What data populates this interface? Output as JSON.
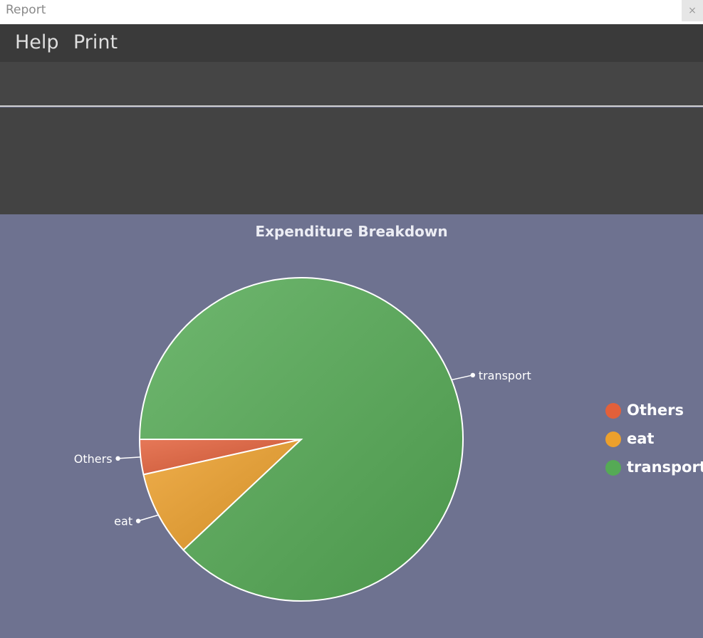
{
  "window": {
    "title": "Report",
    "close_glyph": "×"
  },
  "menu": {
    "items": [
      {
        "label": "Help"
      },
      {
        "label": "Print"
      }
    ]
  },
  "chart_data": {
    "type": "pie",
    "title": "Expenditure Breakdown",
    "categories": [
      "Others",
      "eat",
      "transport"
    ],
    "values": [
      3.5,
      8.5,
      88
    ],
    "colors": [
      "#e2603a",
      "#eca02c",
      "#55aa55"
    ],
    "legend": "right"
  }
}
